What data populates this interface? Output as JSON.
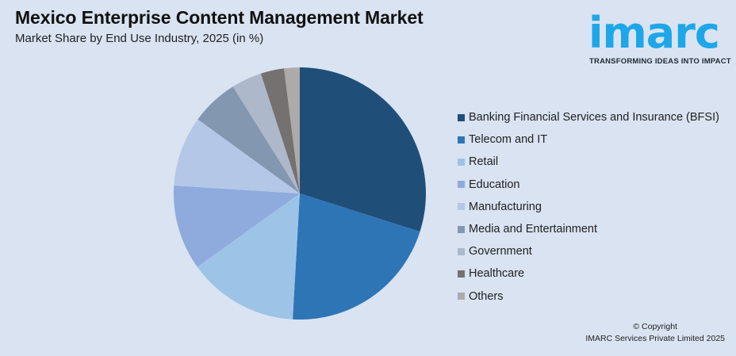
{
  "header": {
    "title": "Mexico Enterprise Content Management Market",
    "subtitle": "Market Share by End Use Industry, 2025 (in %)"
  },
  "logo": {
    "word": "imarc",
    "tagline": "TRANSFORMING IDEAS INTO IMPACT",
    "color": "#1ea7e8"
  },
  "footer": {
    "line1": "© Copyright",
    "line2": "IMARC Services Private Limited 2025"
  },
  "chart_data": {
    "type": "pie",
    "title": "Mexico Enterprise Content Management Market",
    "subtitle": "Market Share by End Use Industry, 2025 (in %)",
    "start_angle": "12 o'clock, clockwise",
    "legend_position": "right",
    "categories": [
      "Banking Financial Services and Insurance (BFSI)",
      "Telecom and IT",
      "Retail",
      "Education",
      "Manufacturing",
      "Media and Entertainment",
      "Government",
      "Healthcare",
      "Others"
    ],
    "values": [
      29.9,
      21.0,
      14.2,
      10.9,
      9.0,
      6.1,
      3.9,
      3.0,
      2.0
    ],
    "colors": [
      "#1f4e79",
      "#2e75b6",
      "#9dc3e6",
      "#8faadc",
      "#b4c7e7",
      "#8497b0",
      "#adb9ca",
      "#767171",
      "#aeaaaa"
    ]
  },
  "legend": {
    "items": [
      {
        "label": "Banking Financial Services and Insurance (BFSI)",
        "color": "#1f4e79"
      },
      {
        "label": "Telecom and IT",
        "color": "#2e75b6"
      },
      {
        "label": "Retail",
        "color": "#9dc3e6"
      },
      {
        "label": "Education",
        "color": "#8faadc"
      },
      {
        "label": "Manufacturing",
        "color": "#b4c7e7"
      },
      {
        "label": "Media and Entertainment",
        "color": "#8497b0"
      },
      {
        "label": "Government",
        "color": "#adb9ca"
      },
      {
        "label": "Healthcare",
        "color": "#767171"
      },
      {
        "label": "Others",
        "color": "#aeaaaa"
      }
    ]
  }
}
